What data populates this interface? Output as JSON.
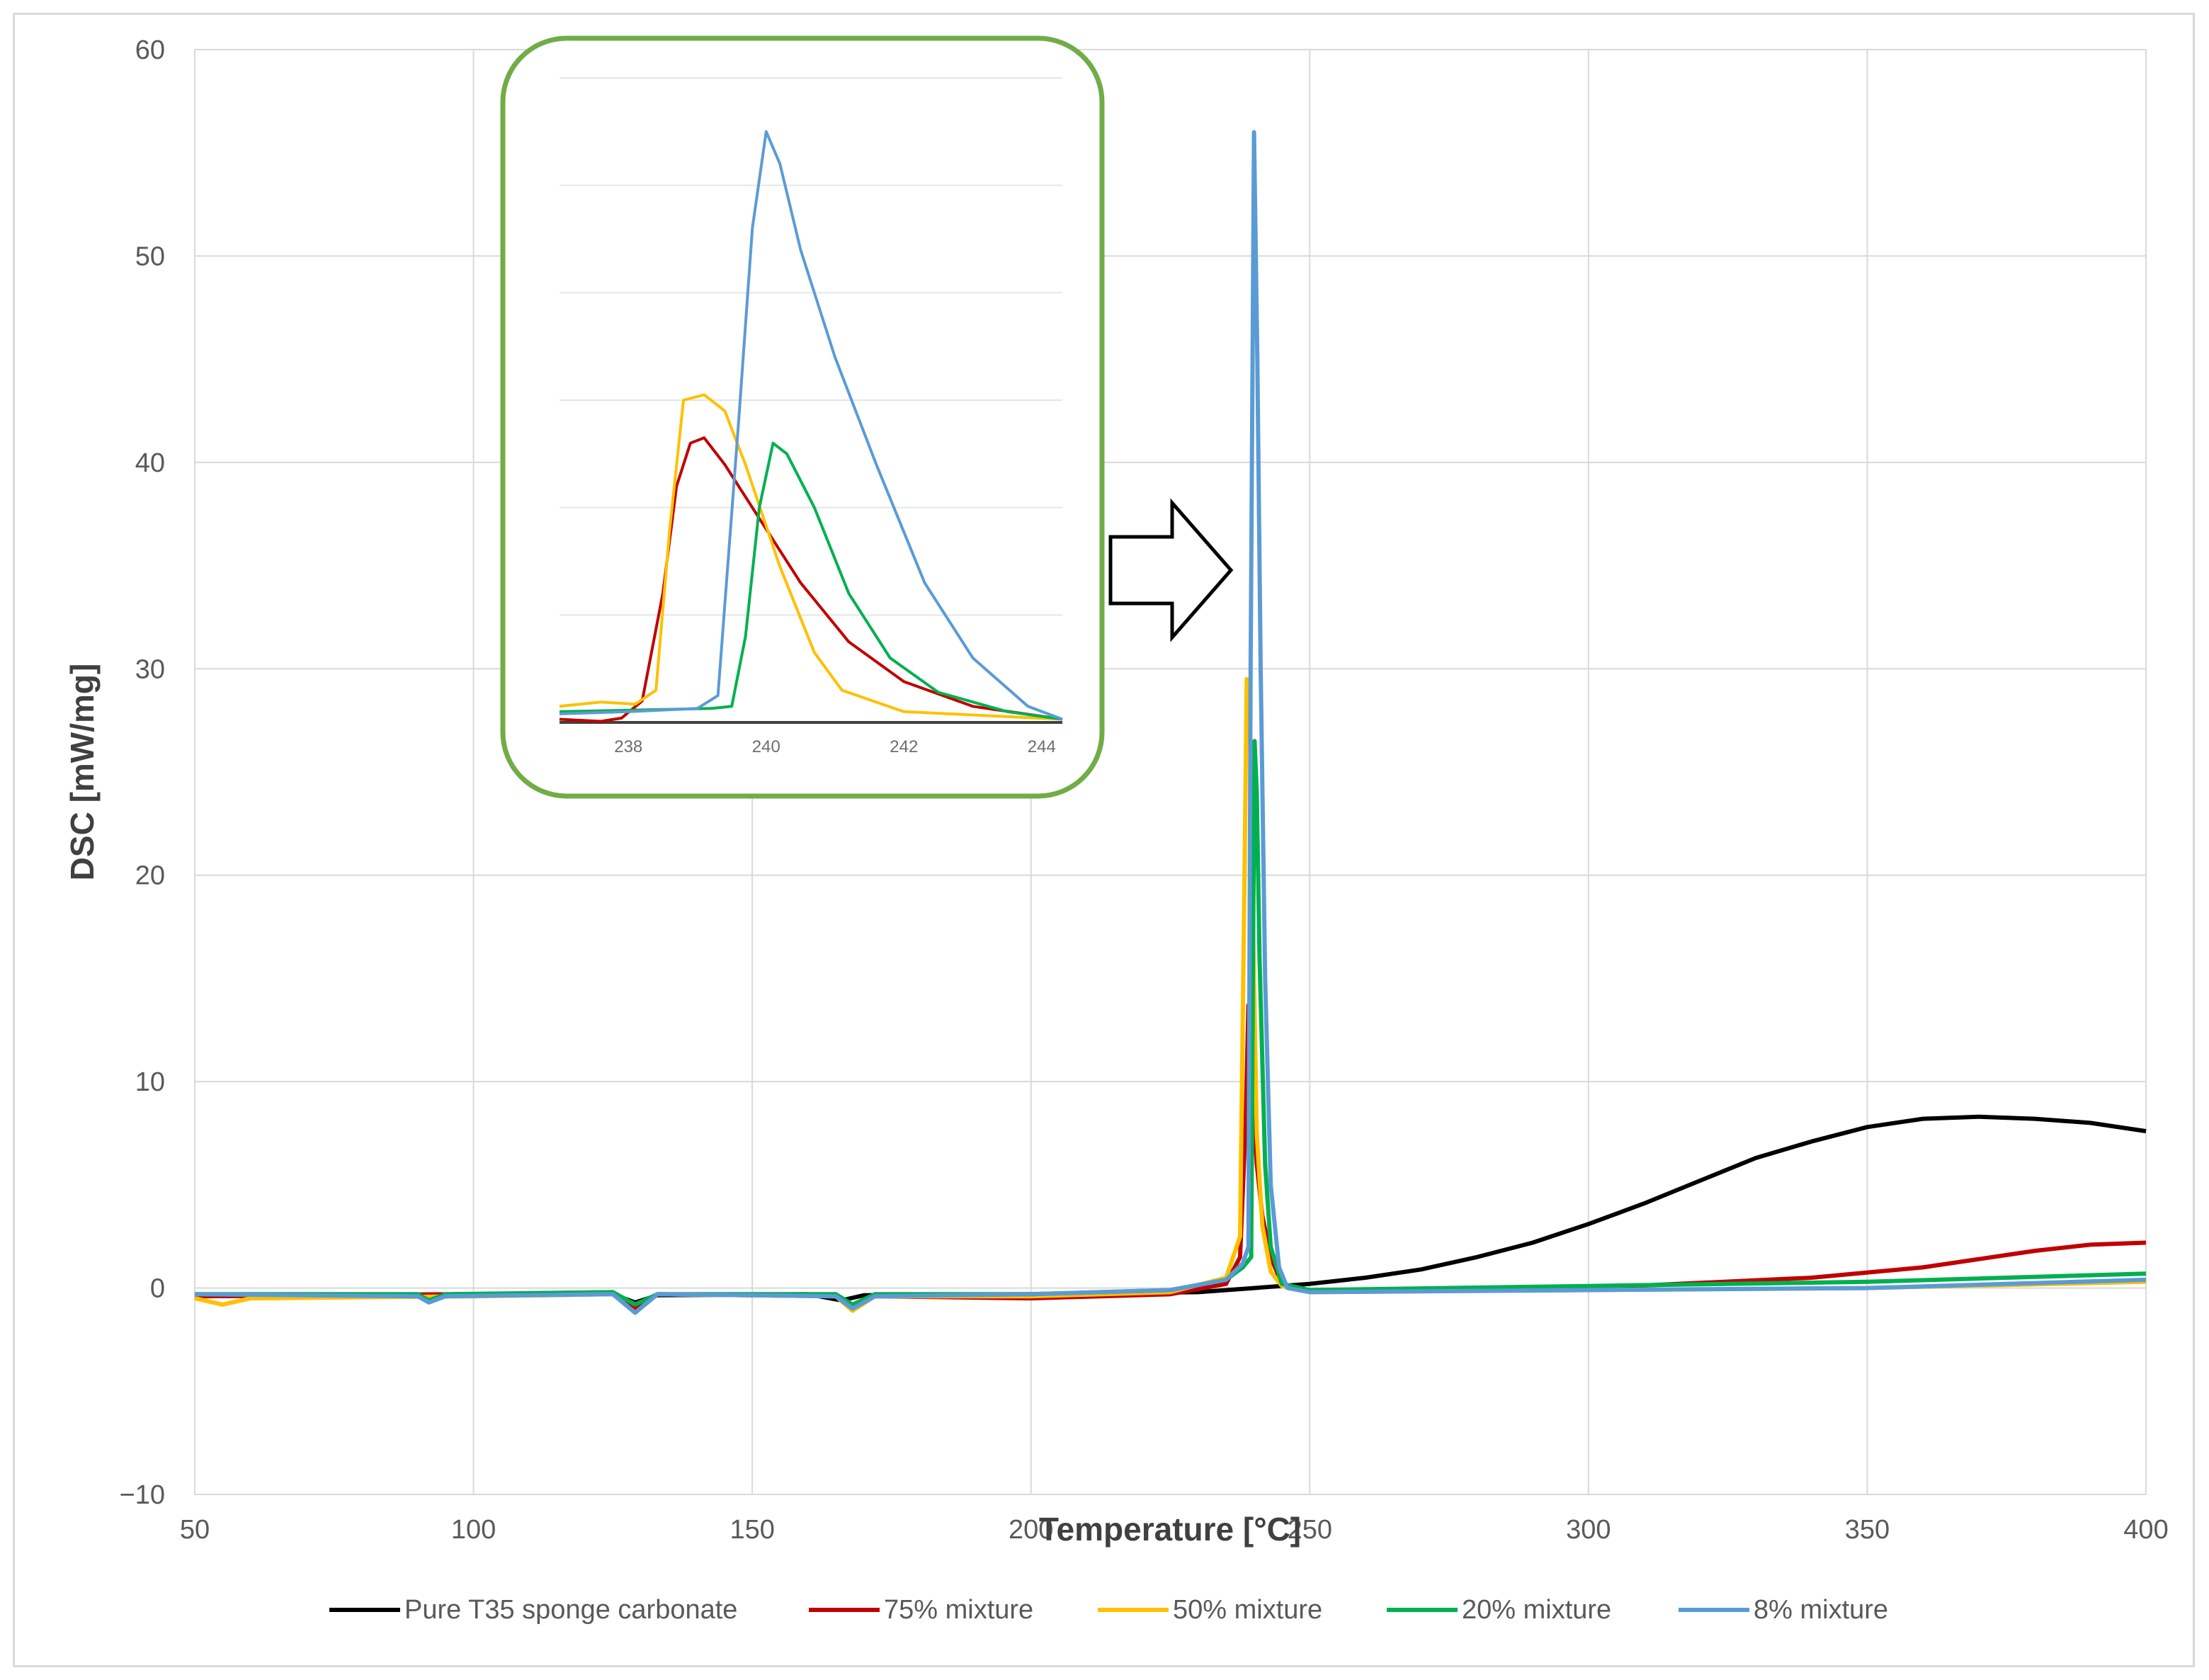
{
  "chart_data": {
    "type": "line",
    "xlabel": "Temperature [°C]",
    "ylabel": "DSC [mW/mg]",
    "xlim": [
      50,
      400
    ],
    "ylim": [
      -10,
      60
    ],
    "xticks": [
      50,
      100,
      150,
      200,
      250,
      300,
      350,
      400
    ],
    "yticks": [
      -10,
      0,
      10,
      20,
      30,
      40,
      50,
      60
    ],
    "ytick_labels": [
      "−10",
      "0",
      "10",
      "20",
      "30",
      "40",
      "50",
      "60"
    ],
    "grid": true,
    "legend_position": "bottom",
    "series": [
      {
        "name": "Pure T35 sponge carbonate",
        "color": "#000000",
        "points": [
          [
            50,
            -0.4
          ],
          [
            100,
            -0.3
          ],
          [
            125,
            -0.3
          ],
          [
            129,
            -0.7
          ],
          [
            133,
            -0.35
          ],
          [
            160,
            -0.3
          ],
          [
            166,
            -0.6
          ],
          [
            170,
            -0.35
          ],
          [
            200,
            -0.3
          ],
          [
            230,
            -0.2
          ],
          [
            240,
            0.0
          ],
          [
            250,
            0.2
          ],
          [
            260,
            0.5
          ],
          [
            270,
            0.9
          ],
          [
            280,
            1.5
          ],
          [
            290,
            2.2
          ],
          [
            300,
            3.1
          ],
          [
            310,
            4.1
          ],
          [
            320,
            5.2
          ],
          [
            330,
            6.3
          ],
          [
            340,
            7.1
          ],
          [
            350,
            7.8
          ],
          [
            360,
            8.2
          ],
          [
            370,
            8.3
          ],
          [
            380,
            8.2
          ],
          [
            390,
            8.0
          ],
          [
            400,
            7.6
          ]
        ]
      },
      {
        "name": "75% mixture",
        "color": "#c00000",
        "points": [
          [
            50,
            -0.4
          ],
          [
            100,
            -0.3
          ],
          [
            125,
            -0.2
          ],
          [
            129,
            -1.0
          ],
          [
            133,
            -0.3
          ],
          [
            165,
            -0.4
          ],
          [
            168,
            -0.9
          ],
          [
            172,
            -0.4
          ],
          [
            200,
            -0.5
          ],
          [
            225,
            -0.3
          ],
          [
            235,
            0.2
          ],
          [
            237.5,
            1.5
          ],
          [
            238.5,
            8.0
          ],
          [
            239.0,
            13.7
          ],
          [
            239.5,
            10.5
          ],
          [
            240.5,
            6.0
          ],
          [
            241.5,
            3.5
          ],
          [
            243,
            1.5
          ],
          [
            245,
            0.2
          ],
          [
            250,
            -0.1
          ],
          [
            300,
            0.0
          ],
          [
            340,
            0.5
          ],
          [
            360,
            1.0
          ],
          [
            380,
            1.8
          ],
          [
            390,
            2.1
          ],
          [
            400,
            2.2
          ]
        ]
      },
      {
        "name": "50% mixture",
        "color": "#ffc000",
        "points": [
          [
            50,
            -0.5
          ],
          [
            55,
            -0.8
          ],
          [
            60,
            -0.5
          ],
          [
            100,
            -0.4
          ],
          [
            125,
            -0.3
          ],
          [
            129,
            -1.2
          ],
          [
            133,
            -0.3
          ],
          [
            165,
            -0.4
          ],
          [
            168,
            -1.1
          ],
          [
            172,
            -0.4
          ],
          [
            200,
            -0.4
          ],
          [
            225,
            -0.2
          ],
          [
            235,
            0.5
          ],
          [
            237.5,
            2.5
          ],
          [
            238.3,
            20.0
          ],
          [
            238.7,
            29.5
          ],
          [
            239.3,
            27.0
          ],
          [
            239.8,
            18.0
          ],
          [
            240.5,
            7.5
          ],
          [
            241.5,
            3.0
          ],
          [
            243,
            0.8
          ],
          [
            245,
            0.1
          ],
          [
            250,
            -0.2
          ],
          [
            300,
            -0.1
          ],
          [
            350,
            0.0
          ],
          [
            400,
            0.3
          ]
        ]
      },
      {
        "name": "20% mixture",
        "color": "#00b050",
        "points": [
          [
            50,
            -0.3
          ],
          [
            90,
            -0.3
          ],
          [
            92,
            -0.6
          ],
          [
            95,
            -0.3
          ],
          [
            125,
            -0.2
          ],
          [
            129,
            -0.8
          ],
          [
            133,
            -0.3
          ],
          [
            165,
            -0.3
          ],
          [
            168,
            -0.8
          ],
          [
            172,
            -0.3
          ],
          [
            200,
            -0.3
          ],
          [
            225,
            -0.1
          ],
          [
            235,
            0.4
          ],
          [
            238,
            1.0
          ],
          [
            239.5,
            1.5
          ],
          [
            239.8,
            15.0
          ],
          [
            240.1,
            26.5
          ],
          [
            240.5,
            24.0
          ],
          [
            241,
            16.0
          ],
          [
            242,
            6.0
          ],
          [
            243,
            2.0
          ],
          [
            245,
            0.2
          ],
          [
            250,
            -0.1
          ],
          [
            300,
            0.1
          ],
          [
            350,
            0.3
          ],
          [
            400,
            0.7
          ]
        ]
      },
      {
        "name": "8% mixture",
        "color": "#5b9bd5",
        "points": [
          [
            50,
            -0.3
          ],
          [
            90,
            -0.4
          ],
          [
            92,
            -0.7
          ],
          [
            95,
            -0.4
          ],
          [
            125,
            -0.3
          ],
          [
            129,
            -1.2
          ],
          [
            133,
            -0.3
          ],
          [
            165,
            -0.4
          ],
          [
            168,
            -1.0
          ],
          [
            172,
            -0.4
          ],
          [
            200,
            -0.3
          ],
          [
            225,
            -0.1
          ],
          [
            235,
            0.4
          ],
          [
            238,
            1.2
          ],
          [
            239.0,
            2.0
          ],
          [
            239.4,
            30.0
          ],
          [
            240.0,
            56.0
          ],
          [
            240.6,
            45.0
          ],
          [
            241.2,
            30.0
          ],
          [
            242,
            15.0
          ],
          [
            243,
            5.0
          ],
          [
            244.5,
            1.0
          ],
          [
            246,
            0.0
          ],
          [
            250,
            -0.2
          ],
          [
            300,
            -0.1
          ],
          [
            350,
            0.0
          ],
          [
            400,
            0.4
          ]
        ]
      }
    ],
    "inset": {
      "xlim": [
        237,
        244.3
      ],
      "ylim": [
        0,
        60
      ],
      "xticks": [
        238,
        240,
        242,
        244
      ],
      "series": [
        {
          "color": "#404040",
          "points": [
            [
              237,
              0.0
            ],
            [
              244.3,
              0.0
            ]
          ]
        },
        {
          "color": "#c00000",
          "points": [
            [
              237,
              0.3
            ],
            [
              237.6,
              0.1
            ],
            [
              237.9,
              0.4
            ],
            [
              238.2,
              2.0
            ],
            [
              238.5,
              12.0
            ],
            [
              238.7,
              22.0
            ],
            [
              238.9,
              26.0
            ],
            [
              239.1,
              26.5
            ],
            [
              239.4,
              24.0
            ],
            [
              239.8,
              20.0
            ],
            [
              240.5,
              13.0
            ],
            [
              241.2,
              7.5
            ],
            [
              242,
              3.8
            ],
            [
              243,
              1.5
            ],
            [
              244.3,
              0.3
            ]
          ]
        },
        {
          "color": "#ffc000",
          "points": [
            [
              237,
              1.5
            ],
            [
              237.6,
              1.9
            ],
            [
              238.1,
              1.7
            ],
            [
              238.4,
              3.0
            ],
            [
              238.6,
              18.0
            ],
            [
              238.8,
              30.0
            ],
            [
              239.1,
              30.5
            ],
            [
              239.4,
              29.0
            ],
            [
              239.7,
              24.0
            ],
            [
              240.2,
              14.5
            ],
            [
              240.7,
              6.5
            ],
            [
              241.1,
              3.0
            ],
            [
              242,
              1.0
            ],
            [
              244.3,
              0.3
            ]
          ]
        },
        {
          "color": "#00b050",
          "points": [
            [
              237,
              1.0
            ],
            [
              238.5,
              1.2
            ],
            [
              239.2,
              1.3
            ],
            [
              239.5,
              1.5
            ],
            [
              239.7,
              8.0
            ],
            [
              239.9,
              20.0
            ],
            [
              240.1,
              26.0
            ],
            [
              240.3,
              25.0
            ],
            [
              240.7,
              20.0
            ],
            [
              241.2,
              12.0
            ],
            [
              241.8,
              6.0
            ],
            [
              242.5,
              2.8
            ],
            [
              243.5,
              1.0
            ],
            [
              244.3,
              0.3
            ]
          ]
        },
        {
          "color": "#5b9bd5",
          "points": [
            [
              237,
              0.8
            ],
            [
              238,
              1.0
            ],
            [
              239.0,
              1.3
            ],
            [
              239.3,
              2.5
            ],
            [
              239.6,
              28.0
            ],
            [
              239.8,
              46.0
            ],
            [
              240.0,
              55.0
            ],
            [
              240.2,
              52.0
            ],
            [
              240.5,
              44.0
            ],
            [
              241,
              34.0
            ],
            [
              241.6,
              24.0
            ],
            [
              242.3,
              13.0
            ],
            [
              243,
              6.0
            ],
            [
              243.8,
              1.5
            ],
            [
              244.3,
              0.3
            ]
          ]
        }
      ]
    }
  }
}
